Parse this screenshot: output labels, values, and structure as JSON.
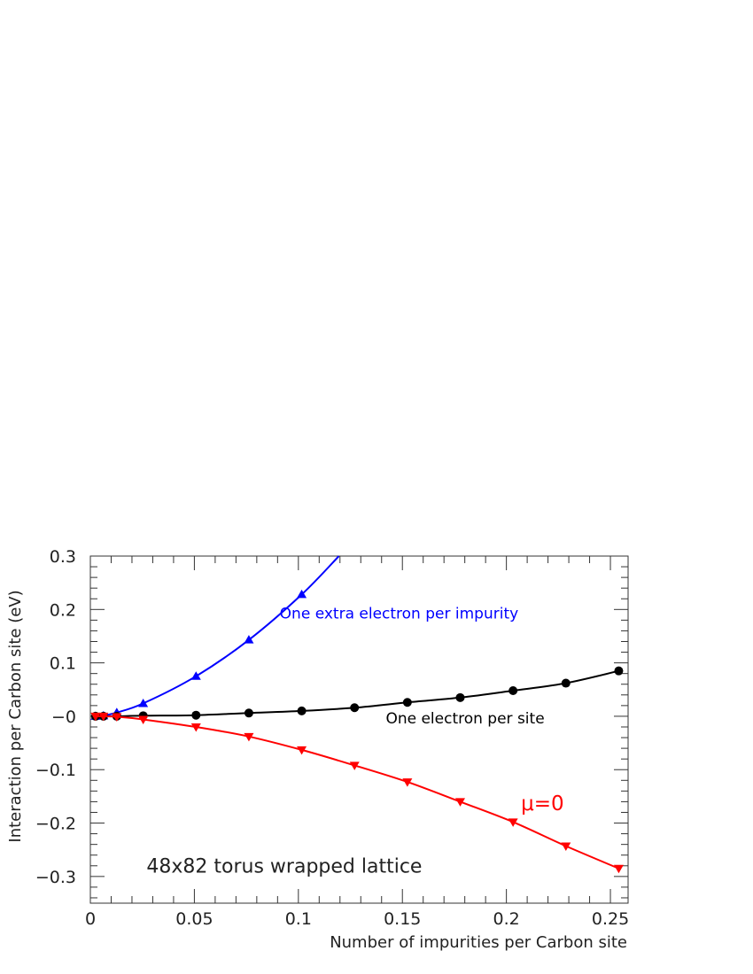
{
  "chart_data": {
    "type": "line",
    "title": "",
    "xlabel": "Number of impurities per Carbon site",
    "ylabel": "Interaction per Carbon site  (eV)",
    "xlim": [
      0,
      0.2585
    ],
    "ylim": [
      -0.35,
      0.3
    ],
    "x_ticks": [
      0,
      0.05,
      0.1,
      0.15,
      0.2,
      0.25
    ],
    "x_tick_labels": [
      "0",
      "0.05",
      "0.1",
      "0.15",
      "0.2",
      "0.25"
    ],
    "y_ticks": [
      0.3,
      0.2,
      0.1,
      0,
      -0.1,
      -0.2,
      -0.3
    ],
    "y_tick_labels": [
      "0.3",
      "0.2",
      "0.1",
      "−0",
      "−0.1",
      "−0.2",
      "−0.3"
    ],
    "grid": false,
    "series": [
      {
        "name": "One extra electron per impurity",
        "color": "#0000ff",
        "marker": "triangle-up",
        "x": [
          0.0025,
          0.0063,
          0.0127,
          0.0254,
          0.0508,
          0.0762,
          0.1016
        ],
        "y": [
          0.0,
          0.001,
          0.007,
          0.024,
          0.075,
          0.143,
          0.228
        ],
        "curve_end": [
          0.1195,
          0.3
        ]
      },
      {
        "name": "One electron per site",
        "color": "#000000",
        "marker": "circle",
        "x": [
          0.0025,
          0.0063,
          0.0127,
          0.0254,
          0.0508,
          0.0762,
          0.1016,
          0.127,
          0.1524,
          0.1778,
          0.2032,
          0.2286,
          0.254
        ],
        "y": [
          0.0,
          0.0,
          0.0,
          0.001,
          0.002,
          0.006,
          0.01,
          0.016,
          0.026,
          0.035,
          0.048,
          0.062,
          0.085
        ]
      },
      {
        "name": "μ=0",
        "color": "#ff0000",
        "marker": "triangle-down",
        "x": [
          0.0025,
          0.0063,
          0.0127,
          0.0254,
          0.0508,
          0.0762,
          0.1016,
          0.127,
          0.1524,
          0.1778,
          0.2032,
          0.2286,
          0.254
        ],
        "y": [
          0.0,
          0.0,
          -0.001,
          -0.006,
          -0.02,
          -0.038,
          -0.063,
          -0.092,
          -0.123,
          -0.16,
          -0.198,
          -0.243,
          -0.285
        ]
      }
    ],
    "annotations": [
      {
        "text": "One extra electron per impurity",
        "color": "#0000ff",
        "x": 0.091,
        "y": 0.183
      },
      {
        "text": "One electron per site",
        "color": "#000000",
        "x": 0.142,
        "y": -0.013
      },
      {
        "text": "μ=0",
        "color": "#ff0000",
        "x": 0.207,
        "y": -0.176
      },
      {
        "text": "48x82 torus wrapped lattice",
        "color": "#222222",
        "x": 0.027,
        "y": -0.293
      }
    ]
  }
}
